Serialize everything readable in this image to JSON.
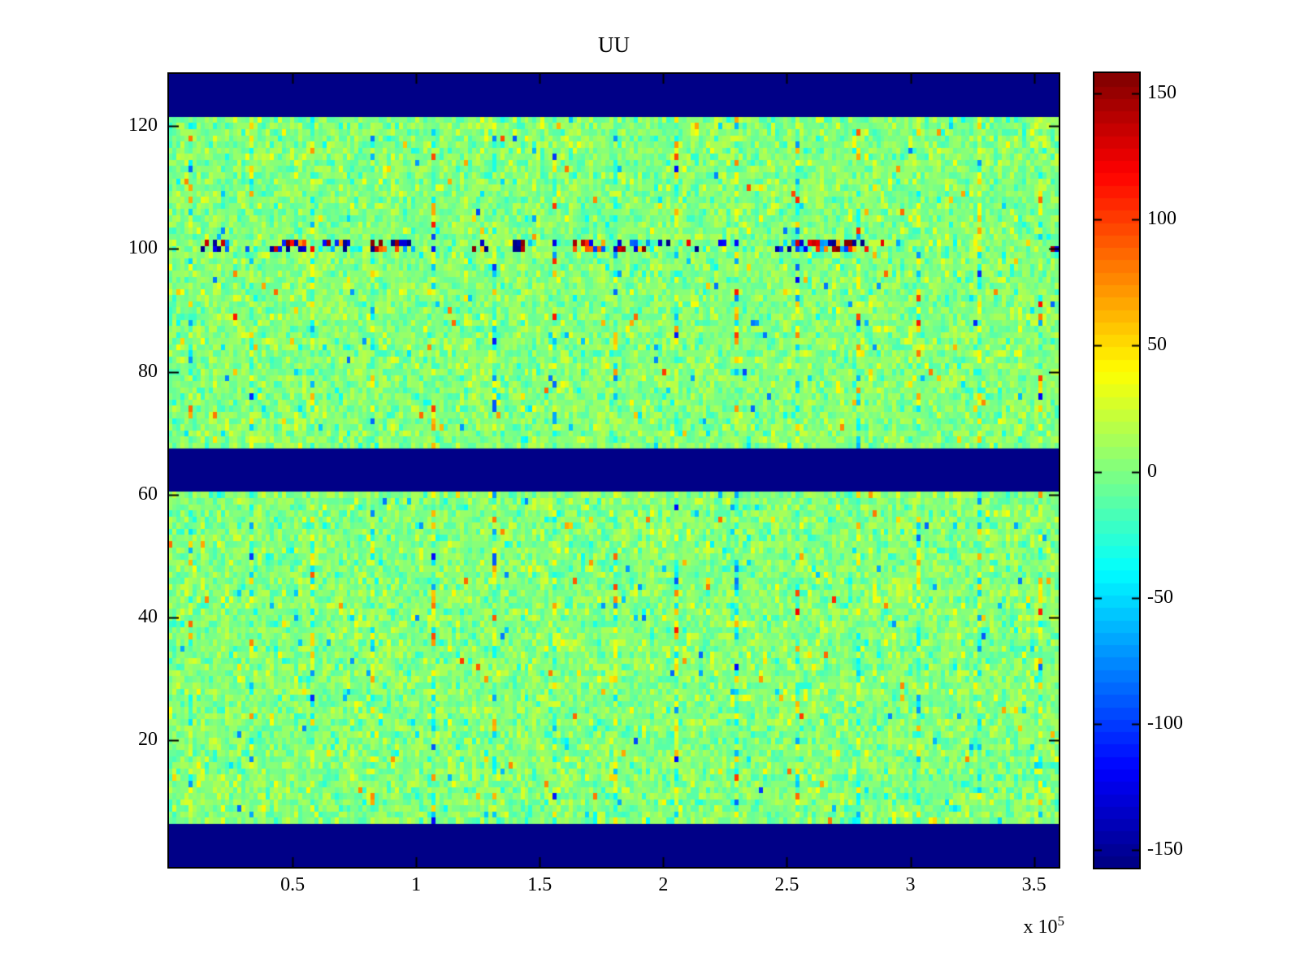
{
  "title": "UU",
  "axes": {
    "x": {
      "tick_values": [
        50000,
        100000,
        150000,
        200000,
        250000,
        300000,
        350000
      ],
      "tick_labels": [
        "0.5",
        "1",
        "1.5",
        "2",
        "2.5",
        "3",
        "3.5"
      ],
      "range": [
        0,
        360000
      ],
      "exponent": {
        "prefix": "x 10",
        "power": "5"
      }
    },
    "y": {
      "tick_values": [
        20,
        40,
        60,
        80,
        100,
        120
      ],
      "tick_labels": [
        "20",
        "40",
        "60",
        "80",
        "100",
        "120"
      ],
      "range": [
        -0.6,
        128.5
      ]
    }
  },
  "colorbar": {
    "tick_values": [
      150,
      100,
      50,
      0,
      -50,
      -100,
      -150
    ],
    "tick_labels": [
      "150",
      "100",
      "50",
      "0",
      "-50",
      "-100",
      "-150"
    ],
    "clim": [
      -157,
      158
    ],
    "colormap": "jet",
    "steps": 64
  },
  "colors": {
    "background": "#ffffff",
    "axis": "#000000",
    "band_navy": "#000087"
  },
  "chart_data": {
    "type": "heatmap",
    "title": "UU",
    "xlabel": "",
    "ylabel": "",
    "x_range": [
      0,
      360000
    ],
    "x_tick_values": [
      50000,
      100000,
      150000,
      200000,
      250000,
      300000,
      350000
    ],
    "x_scale_note": "x-axis labels shown in units of 10^5",
    "y_range": [
      -0.6,
      128.5
    ],
    "y_tick_values": [
      20,
      40,
      60,
      80,
      100,
      120
    ],
    "colormap": "jet",
    "clim": [
      -157,
      158
    ],
    "legend": "colorbar on right, ticks 150 to -150 by 50",
    "grid": {
      "cols": 220,
      "rows": 129
    },
    "content_description": "dense random noise field, mostly values near 0 (green/yellow-green with cyan flecks), sparse extreme outliers (red/blue)",
    "solid_band_rows": [
      [
        0,
        6
      ],
      [
        61,
        67
      ],
      [
        122,
        128
      ]
    ],
    "solid_band_value": -157,
    "outlier_rows": [
      100,
      101
    ],
    "outlier_row_amplitude": 160,
    "background_noise": {
      "mean": 2,
      "std": 13,
      "spike_prob": 0.025,
      "spike_scale": 170
    },
    "stripe_artifact": {
      "every_cols": 15,
      "offset": 5,
      "std": 30,
      "spike_prob": 0.12,
      "spike_scale": 240
    },
    "seed": 1337
  }
}
